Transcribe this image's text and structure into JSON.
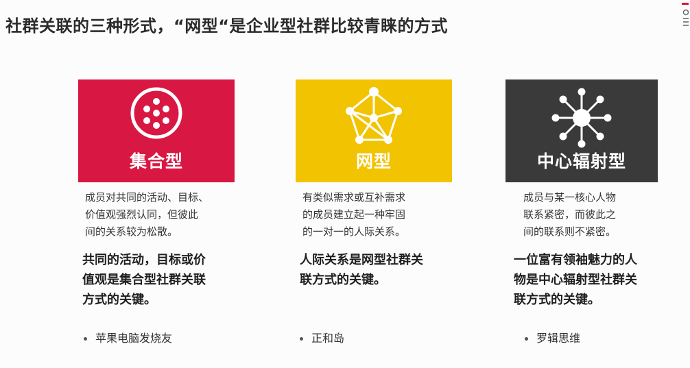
{
  "slide": {
    "title": "社群关联的三种形式，“网型“是企业型社群比较青睐的方式",
    "logo_text": "〇",
    "columns": [
      {
        "label": "集合型",
        "icon": "cluster-dots-icon",
        "color": "#d91743",
        "desc": [
          "成员对共同的活动、目标、",
          "价值观强烈认同，但彼此",
          "间的关系较为松散。"
        ],
        "key": [
          "共同的活动，目标或价",
          "值观是集合型社群关联",
          "方式的关键。"
        ],
        "example": "苹果电脑发烧友"
      },
      {
        "label": "网型",
        "icon": "network-mesh-icon",
        "color": "#f2c300",
        "desc": [
          "有类似需求或互补需求",
          "的成员建立起一种牢固",
          "的一对一的人际关系。"
        ],
        "key": [
          "人际关系是网型社群关",
          "联方式的关键。"
        ],
        "example": "正和岛"
      },
      {
        "label": "中心辐射型",
        "icon": "hub-spoke-icon",
        "color": "#3a3a3a",
        "desc": [
          "成员与某一核心人物",
          "联系紧密，而彼此之",
          "间的联系则不紧密。"
        ],
        "key": [
          "一位富有领袖魅力的人",
          "物是中心辐射型社群关",
          "联方式的关键。"
        ],
        "example": "罗辑思维"
      }
    ]
  }
}
